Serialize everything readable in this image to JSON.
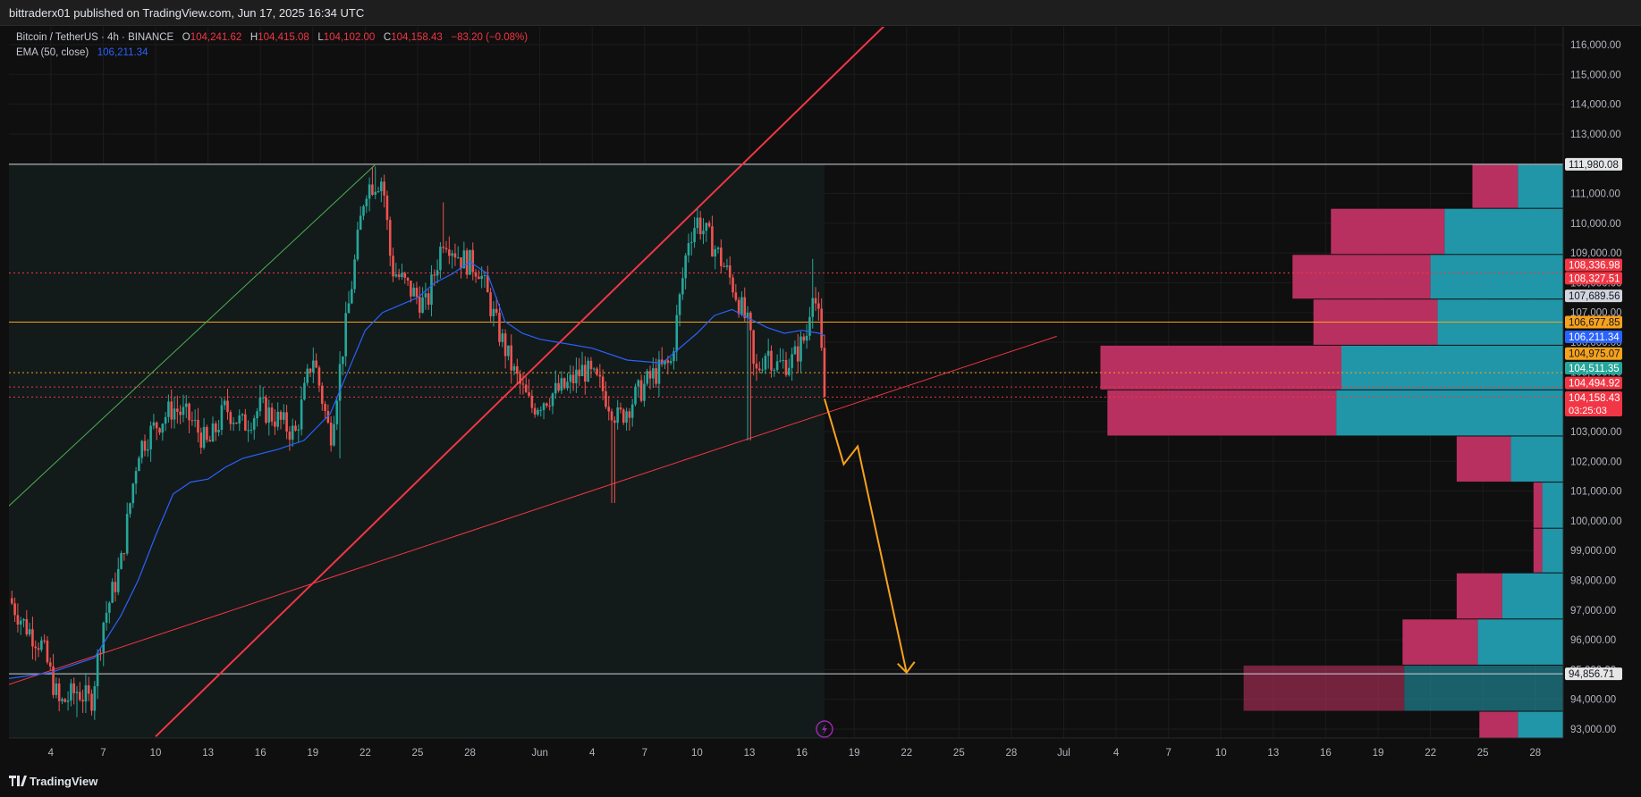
{
  "header": {
    "publisher_line": "bittraderx01 published on TradingView.com, Jun 17, 2025 16:34 UTC"
  },
  "legend": {
    "symbol": "Bitcoin / TetherUS · 4h · BINANCE",
    "o_label": "O",
    "o_value": "104,241.62",
    "h_label": "H",
    "h_value": "104,415.08",
    "l_label": "L",
    "l_value": "104,102.00",
    "c_label": "C",
    "c_value": "104,158.43",
    "change": "−83.20 (−0.08%)",
    "ema_label": "EMA (50, close)",
    "ema_value": "106,211.34"
  },
  "footer": {
    "brand": "TradingView",
    "logo_icon": "tradingview-logo-icon"
  },
  "colors": {
    "background": "#0f0f0f",
    "up": "#26a69a",
    "down": "#ef5350",
    "ema": "#2962ff",
    "red_line": "#f23645",
    "green_line": "#4caf50",
    "orange": "#f7a21b",
    "vp_down": "#b8305f",
    "vp_up": "#2196a8",
    "highlight_zone": "#131a1a"
  },
  "chart_data": {
    "type": "candlestick",
    "symbol": "Bitcoin / TetherUS",
    "interval": "4h",
    "exchange": "BINANCE",
    "ylim": [
      92700,
      116600
    ],
    "y_ticks": [
      93000,
      94000,
      95000,
      96000,
      97000,
      98000,
      99000,
      100000,
      101000,
      102000,
      103000,
      104000,
      105000,
      106000,
      107000,
      108000,
      109000,
      110000,
      111000,
      112000,
      113000,
      114000,
      115000,
      116000
    ],
    "y_tick_labels": [
      "93,000.00",
      "94,000.00",
      "95,000.00",
      "96,000.00",
      "97,000.00",
      "98,000.00",
      "99,000.00",
      "100,000.00",
      "101,000.00",
      "102,000.00",
      "103,000.00",
      "104,000.00",
      "105,000.00",
      "106,000.00",
      "107,000.00",
      "108,000.00",
      "109,000.00",
      "110,000.00",
      "111,000.00",
      "112,000.00",
      "113,000.00",
      "114,000.00",
      "115,000.00",
      "116,000.00"
    ],
    "x_ticks": [
      {
        "label": "4",
        "day": 4
      },
      {
        "label": "7",
        "day": 7
      },
      {
        "label": "10",
        "day": 10
      },
      {
        "label": "13",
        "day": 13
      },
      {
        "label": "16",
        "day": 16
      },
      {
        "label": "19",
        "day": 19
      },
      {
        "label": "22",
        "day": 22
      },
      {
        "label": "25",
        "day": 25
      },
      {
        "label": "28",
        "day": 28
      },
      {
        "label": "Jun",
        "day": 32
      },
      {
        "label": "4",
        "day": 35
      },
      {
        "label": "7",
        "day": 38
      },
      {
        "label": "10",
        "day": 41
      },
      {
        "label": "13",
        "day": 44
      },
      {
        "label": "16",
        "day": 47
      },
      {
        "label": "19",
        "day": 50
      },
      {
        "label": "22",
        "day": 53
      },
      {
        "label": "25",
        "day": 56
      },
      {
        "label": "28",
        "day": 59
      },
      {
        "label": "Jul",
        "day": 62
      },
      {
        "label": "4",
        "day": 65
      },
      {
        "label": "7",
        "day": 68
      },
      {
        "label": "10",
        "day": 71
      },
      {
        "label": "13",
        "day": 74
      },
      {
        "label": "16",
        "day": 77
      },
      {
        "label": "19",
        "day": 80
      },
      {
        "label": "22",
        "day": 83
      },
      {
        "label": "25",
        "day": 86
      },
      {
        "label": "28",
        "day": 89
      }
    ],
    "x_range_days": [
      1.6,
      90.6
    ],
    "x_day_note": "day numbering: May 1 = 1, Jun 1 = 32, Jul 1 = 62",
    "price_path": [
      [
        1.6,
        97400
      ],
      [
        2.5,
        96500
      ],
      [
        3.5,
        95800
      ],
      [
        4.5,
        93800
      ],
      [
        5.5,
        94300
      ],
      [
        6.3,
        93900
      ],
      [
        7.0,
        96600
      ],
      [
        8.0,
        98500
      ],
      [
        9.0,
        102400
      ],
      [
        10.0,
        103200
      ],
      [
        11.0,
        103800
      ],
      [
        12.0,
        103400
      ],
      [
        13.0,
        102500
      ],
      [
        14.0,
        103800
      ],
      [
        15.0,
        103200
      ],
      [
        16.0,
        103800
      ],
      [
        17.0,
        103400
      ],
      [
        18.0,
        102900
      ],
      [
        19.0,
        105600
      ],
      [
        20.0,
        102800
      ],
      [
        21.0,
        107000
      ],
      [
        22.0,
        111200
      ],
      [
        23.0,
        111500
      ],
      [
        23.5,
        108500
      ],
      [
        24.5,
        107800
      ],
      [
        25.5,
        107200
      ],
      [
        26.5,
        109600
      ],
      [
        27.5,
        108800
      ],
      [
        28.5,
        108500
      ],
      [
        29.5,
        106600
      ],
      [
        30.5,
        105000
      ],
      [
        31.5,
        103800
      ],
      [
        32.5,
        104200
      ],
      [
        33.5,
        104500
      ],
      [
        34.5,
        105100
      ],
      [
        35.5,
        104500
      ],
      [
        36.5,
        103400
      ],
      [
        37.5,
        104200
      ],
      [
        38.5,
        104900
      ],
      [
        39.5,
        105300
      ],
      [
        40.5,
        109500
      ],
      [
        41.0,
        110100
      ],
      [
        42.0,
        109200
      ],
      [
        43.0,
        108000
      ],
      [
        44.0,
        106400
      ],
      [
        44.3,
        104800
      ],
      [
        45.0,
        105800
      ],
      [
        45.5,
        105200
      ],
      [
        46.5,
        105400
      ],
      [
        47.3,
        106300
      ],
      [
        47.6,
        108000
      ],
      [
        48.0,
        106600
      ],
      [
        48.3,
        104158.43
      ]
    ],
    "candle_count": 276,
    "price_low_points": [
      [
        5.5,
        93400
      ],
      [
        36.2,
        100600
      ],
      [
        44.0,
        102700
      ],
      [
        20.5,
        102100
      ]
    ],
    "price_high_points": [
      [
        22.5,
        111900
      ],
      [
        26.5,
        110700
      ],
      [
        41.0,
        110500
      ],
      [
        47.6,
        108800
      ]
    ],
    "ema_50": [
      [
        1.6,
        94700
      ],
      [
        4.0,
        94900
      ],
      [
        6.5,
        95400
      ],
      [
        8.0,
        96800
      ],
      [
        9.0,
        98000
      ],
      [
        10.0,
        99500
      ],
      [
        11.0,
        100900
      ],
      [
        12.0,
        101300
      ],
      [
        13.0,
        101400
      ],
      [
        14.0,
        101800
      ],
      [
        15.0,
        102100
      ],
      [
        17.0,
        102400
      ],
      [
        18.5,
        102700
      ],
      [
        20.0,
        103600
      ],
      [
        21.0,
        105000
      ],
      [
        22.0,
        106400
      ],
      [
        23.0,
        107000
      ],
      [
        25.0,
        107500
      ],
      [
        26.0,
        108000
      ],
      [
        27.0,
        108300
      ],
      [
        28.0,
        108700
      ],
      [
        29.0,
        108300
      ],
      [
        30.0,
        106700
      ],
      [
        31.0,
        106300
      ],
      [
        32.0,
        106100
      ],
      [
        33.0,
        106000
      ],
      [
        35.0,
        105800
      ],
      [
        37.0,
        105400
      ],
      [
        39.0,
        105300
      ],
      [
        40.0,
        105800
      ],
      [
        41.0,
        106300
      ],
      [
        42.0,
        106900
      ],
      [
        43.0,
        107100
      ],
      [
        44.0,
        106800
      ],
      [
        45.0,
        106500
      ],
      [
        46.0,
        106300
      ],
      [
        47.0,
        106400
      ],
      [
        48.0,
        106300
      ],
      [
        48.3,
        106211.34
      ]
    ],
    "horizontal_lines": [
      {
        "price": 111980.08,
        "color": "#d1d4dc",
        "style": "solid"
      },
      {
        "price": 94856.71,
        "color": "#d1d4dc",
        "style": "solid"
      },
      {
        "price": 106677.85,
        "color": "#f7a21b",
        "style": "solid"
      },
      {
        "price": 108327.51,
        "color": "#f23645",
        "style": "dotted"
      },
      {
        "price": 104494.92,
        "color": "#f23645",
        "style": "dotted"
      },
      {
        "price": 104975.07,
        "color": "#f7a21b",
        "style": "dotted"
      },
      {
        "price": 104158.43,
        "color": "#f23645",
        "style": "dotted"
      }
    ],
    "trend_lines": [
      {
        "from": [
          1.6,
          100500
        ],
        "to": [
          22.6,
          111980
        ],
        "color": "#4caf50",
        "width": 1
      },
      {
        "from": [
          1.6,
          94500
        ],
        "to": [
          61.6,
          106200
        ],
        "color": "#f23645",
        "width": 1
      },
      {
        "from": [
          10.0,
          92750
        ],
        "to": [
          64.6,
          124000
        ],
        "color": "#f23645",
        "width": 2
      }
    ],
    "projection_path": [
      [
        48.3,
        104100
      ],
      [
        49.4,
        101900
      ],
      [
        50.2,
        102500
      ],
      [
        53.0,
        94900
      ]
    ],
    "projection_color": "#f7a21b",
    "highlight_zone": {
      "x_from": 1.6,
      "x_to": 48.3,
      "y_from": 92700,
      "y_to": 111980
    },
    "volume_profile": [
      {
        "from": 111980,
        "to": 110500,
        "down_days": 2.6,
        "up_days": 2.6
      },
      {
        "from": 110500,
        "to": 108950,
        "down_days": 6.5,
        "up_days": 6.8
      },
      {
        "from": 108950,
        "to": 107450,
        "down_days": 7.9,
        "up_days": 7.6
      },
      {
        "from": 107450,
        "to": 105900,
        "down_days": 7.1,
        "up_days": 7.2
      },
      {
        "from": 105900,
        "to": 104400,
        "down_days": 13.8,
        "up_days": 12.7
      },
      {
        "from": 104400,
        "to": 102850,
        "down_days": 13.1,
        "up_days": 13.0
      },
      {
        "from": 102850,
        "to": 101300,
        "down_days": 3.1,
        "up_days": 3.0
      },
      {
        "from": 101300,
        "to": 99750,
        "down_days": 0.5,
        "up_days": 1.2
      },
      {
        "from": 99750,
        "to": 98250,
        "down_days": 0.5,
        "up_days": 1.2
      },
      {
        "from": 98250,
        "to": 96700,
        "down_days": 2.6,
        "up_days": 3.5
      },
      {
        "from": 96700,
        "to": 95150,
        "down_days": 4.3,
        "up_days": 4.9
      },
      {
        "from": 95150,
        "to": 93600,
        "down_days": 9.2,
        "up_days": 9.1,
        "dim": true
      },
      {
        "from": 93600,
        "to": 92700,
        "down_days": 2.2,
        "up_days": 2.6
      }
    ],
    "price_badges": [
      {
        "label": "111,980.08",
        "price": 111980.08,
        "bg": "#e6e6e6",
        "fg": "#131722"
      },
      {
        "label": "108,336.98",
        "price": 108600,
        "bg": "#f23645",
        "fg": "#ffffff"
      },
      {
        "label": "108,327.51",
        "price": 108150,
        "bg": "#f23645",
        "fg": "#ffffff"
      },
      {
        "label": "107,689.56",
        "price": 107560,
        "bg": "#d1d4dc",
        "fg": "#131722"
      },
      {
        "label": "106,677.85",
        "price": 106677.85,
        "bg": "#f7a21b",
        "fg": "#131722"
      },
      {
        "label": "106,211.34",
        "price": 106180,
        "bg": "#2962ff",
        "fg": "#ffffff"
      },
      {
        "label": "104,975.07",
        "price": 105620,
        "bg": "#f7a21b",
        "fg": "#131722"
      },
      {
        "label": "104,511.35",
        "price": 105130,
        "bg": "#26a69a",
        "fg": "#ffffff"
      },
      {
        "label": "104,494.92",
        "price": 104630,
        "bg": "#f23645",
        "fg": "#ffffff"
      },
      {
        "label": "104,158.43",
        "price": 104140,
        "bg": "#f23645",
        "fg": "#ffffff",
        "sub": "03:25:03"
      },
      {
        "label": "94,856.71",
        "price": 94856.71,
        "bg": "#e6e6e6",
        "fg": "#131722"
      }
    ],
    "live_icon": "lightning-icon"
  }
}
